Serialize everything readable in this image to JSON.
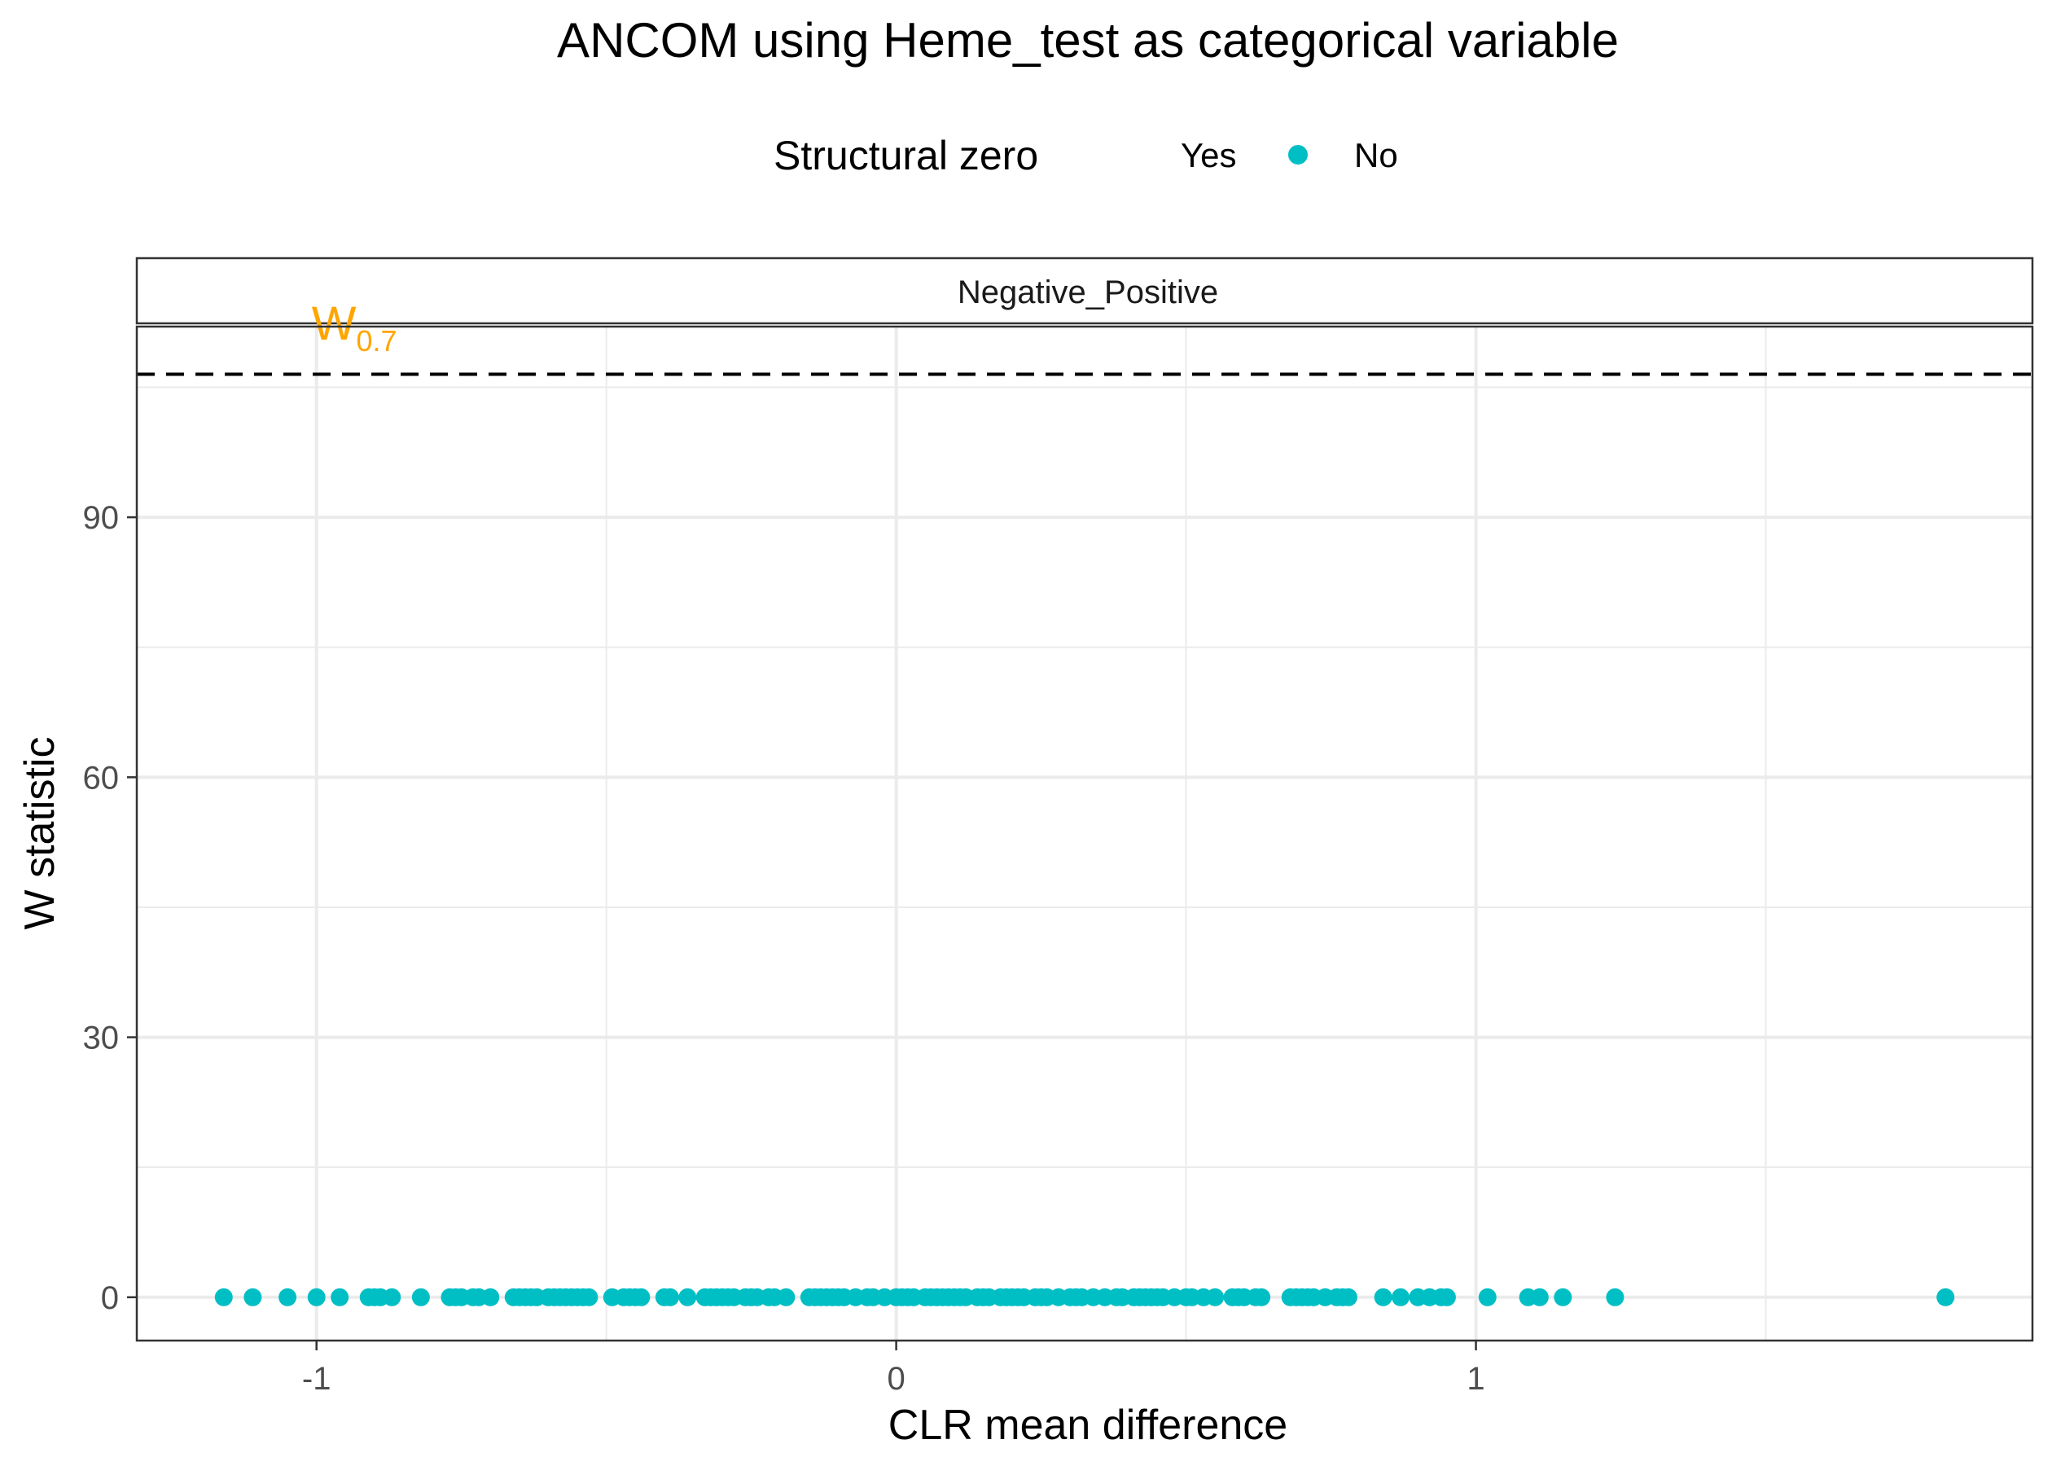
{
  "chart_data": {
    "type": "scatter",
    "title": "ANCOM using Heme_test as categorical variable",
    "facet_label": "Negative_Positive",
    "xlabel": "CLR mean difference",
    "ylabel": "W statistic",
    "xlim": [
      -1.31,
      1.96
    ],
    "ylim": [
      -5,
      112
    ],
    "x_ticks": [
      -1,
      0,
      1
    ],
    "x_tick_labels": [
      "-1",
      "0",
      "1"
    ],
    "y_ticks": [
      0,
      30,
      60,
      90
    ],
    "y_tick_labels": [
      "0",
      "30",
      "60",
      "90"
    ],
    "grid": true,
    "legend": {
      "title": "Structural zero",
      "position": "top",
      "entries": [
        {
          "label": "Yes",
          "color": ""
        },
        {
          "label": "No",
          "color": "#00bfc4"
        }
      ]
    },
    "threshold": {
      "value": 106.5,
      "style": "dashed",
      "annotation_main": "W",
      "annotation_sub": "0.7",
      "annotation_x": -1.0,
      "annotation_y": 110.5,
      "color": "#ffa500"
    },
    "series": [
      {
        "name": "No",
        "color": "#00bfc4",
        "x": [
          -1.16,
          -1.11,
          -1.05,
          -1.0,
          -0.96,
          -0.91,
          -0.9,
          -0.89,
          -0.87,
          -0.82,
          -0.77,
          -0.76,
          -0.75,
          -0.73,
          -0.72,
          -0.7,
          -0.66,
          -0.65,
          -0.64,
          -0.63,
          -0.62,
          -0.6,
          -0.59,
          -0.58,
          -0.57,
          -0.56,
          -0.55,
          -0.54,
          -0.53,
          -0.49,
          -0.47,
          -0.46,
          -0.45,
          -0.44,
          -0.4,
          -0.39,
          -0.36,
          -0.33,
          -0.32,
          -0.31,
          -0.3,
          -0.29,
          -0.28,
          -0.26,
          -0.25,
          -0.24,
          -0.22,
          -0.21,
          -0.19,
          -0.15,
          -0.14,
          -0.13,
          -0.12,
          -0.11,
          -0.1,
          -0.09,
          -0.07,
          -0.05,
          -0.04,
          -0.02,
          0.0,
          0.01,
          0.02,
          0.03,
          0.05,
          0.06,
          0.07,
          0.08,
          0.09,
          0.1,
          0.11,
          0.12,
          0.14,
          0.15,
          0.16,
          0.18,
          0.19,
          0.2,
          0.21,
          0.22,
          0.24,
          0.25,
          0.26,
          0.28,
          0.3,
          0.31,
          0.32,
          0.34,
          0.36,
          0.38,
          0.39,
          0.41,
          0.42,
          0.43,
          0.44,
          0.45,
          0.46,
          0.48,
          0.5,
          0.51,
          0.53,
          0.55,
          0.58,
          0.59,
          0.6,
          0.62,
          0.63,
          0.68,
          0.69,
          0.7,
          0.71,
          0.72,
          0.74,
          0.76,
          0.77,
          0.78,
          0.84,
          0.87,
          0.9,
          0.92,
          0.94,
          0.95,
          1.02,
          1.09,
          1.11,
          1.15,
          1.24,
          1.81
        ],
        "y": [
          0,
          0,
          0,
          0,
          0,
          0,
          0,
          0,
          0,
          0,
          0,
          0,
          0,
          0,
          0,
          0,
          0,
          0,
          0,
          0,
          0,
          0,
          0,
          0,
          0,
          0,
          0,
          0,
          0,
          0,
          0,
          0,
          0,
          0,
          0,
          0,
          0,
          0,
          0,
          0,
          0,
          0,
          0,
          0,
          0,
          0,
          0,
          0,
          0,
          0,
          0,
          0,
          0,
          0,
          0,
          0,
          0,
          0,
          0,
          0,
          0,
          0,
          0,
          0,
          0,
          0,
          0,
          0,
          0,
          0,
          0,
          0,
          0,
          0,
          0,
          0,
          0,
          0,
          0,
          0,
          0,
          0,
          0,
          0,
          0,
          0,
          0,
          0,
          0,
          0,
          0,
          0,
          0,
          0,
          0,
          0,
          0,
          0,
          0,
          0,
          0,
          0,
          0,
          0,
          0,
          0,
          0,
          0,
          0,
          0,
          0,
          0,
          0,
          0,
          0,
          0,
          0,
          0,
          0,
          0,
          0,
          0,
          0,
          0,
          0,
          0,
          0,
          0
        ]
      }
    ]
  }
}
